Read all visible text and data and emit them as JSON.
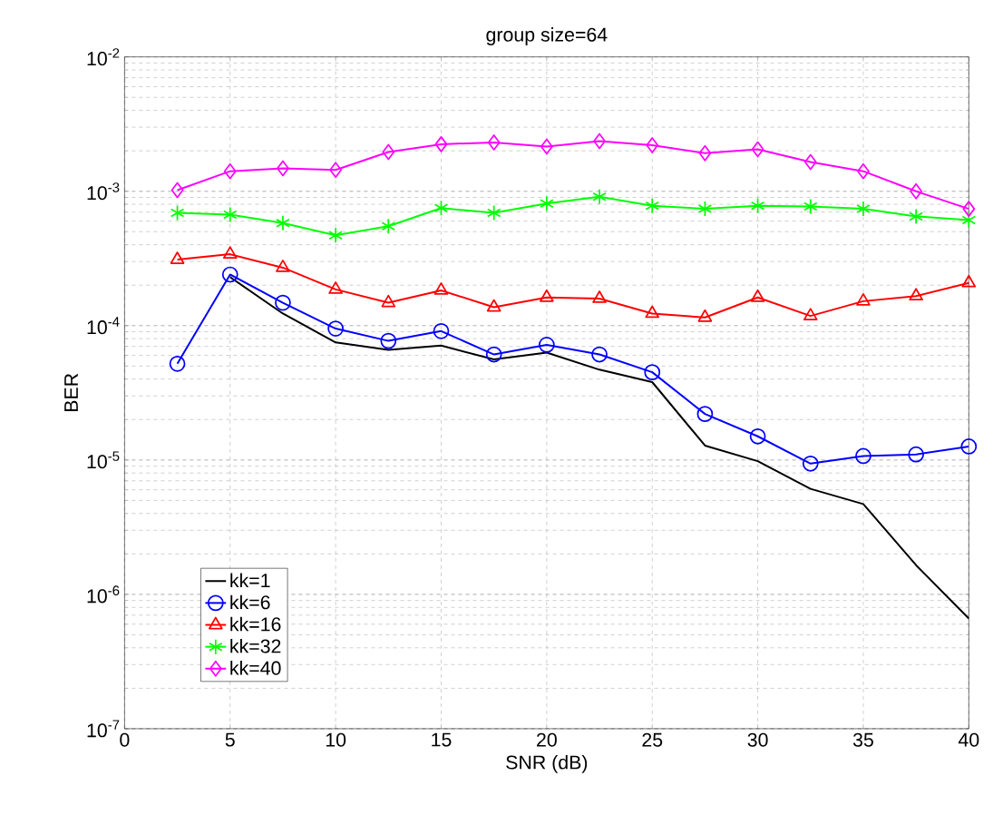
{
  "chart_data": {
    "type": "line",
    "title": "group size=64",
    "xlabel": "SNR (dB)",
    "ylabel": "BER",
    "x": [
      2.5,
      5,
      7.5,
      10,
      12.5,
      15,
      17.5,
      20,
      22.5,
      25,
      27.5,
      30,
      32.5,
      35,
      37.5,
      40
    ],
    "series": [
      {
        "name": "kk=1",
        "color": "#000000",
        "marker": "none",
        "x": [
          5,
          7.5,
          10,
          12.5,
          15,
          17.5,
          20,
          22.5,
          25,
          27.5,
          30,
          32.5,
          35,
          37.5,
          40
        ],
        "values": [
          0.00023,
          0.000123,
          7.5e-05,
          6.6e-05,
          7.1e-05,
          5.6e-05,
          6.3e-05,
          4.7e-05,
          3.8e-05,
          1.28e-05,
          9.8e-06,
          6.1e-06,
          4.7e-06,
          1.65e-06,
          6.6e-07
        ]
      },
      {
        "name": "kk=6",
        "color": "#0000ff",
        "marker": "circle",
        "values": [
          5.2e-05,
          0.00024,
          0.000148,
          9.5e-05,
          7.7e-05,
          9.1e-05,
          6.1e-05,
          7.2e-05,
          6.1e-05,
          4.5e-05,
          2.2e-05,
          1.5e-05,
          9.4e-06,
          1.07e-05,
          1.1e-05,
          1.26e-05
        ]
      },
      {
        "name": "kk=16",
        "color": "#ff0000",
        "marker": "triangle",
        "values": [
          0.00031,
          0.00034,
          0.00027,
          0.000186,
          0.000148,
          0.000183,
          0.000137,
          0.000162,
          0.000159,
          0.000123,
          0.000115,
          0.000162,
          0.000118,
          0.000152,
          0.000166,
          0.000208
        ]
      },
      {
        "name": "kk=32",
        "color": "#00ff00",
        "marker": "cross",
        "values": [
          0.00069,
          0.00067,
          0.00058,
          0.00047,
          0.00055,
          0.00075,
          0.00069,
          0.00081,
          0.00091,
          0.00078,
          0.00074,
          0.00078,
          0.00077,
          0.00074,
          0.00065,
          0.00061
        ]
      },
      {
        "name": "kk=40",
        "color": "#ff00ff",
        "marker": "diamond",
        "values": [
          0.00102,
          0.00141,
          0.00148,
          0.00144,
          0.00196,
          0.00224,
          0.00231,
          0.00215,
          0.00236,
          0.0022,
          0.00192,
          0.00205,
          0.00165,
          0.00141,
          0.001,
          0.00074
        ]
      }
    ],
    "xlim": [
      0,
      40
    ],
    "xticks": [
      0,
      5,
      10,
      15,
      20,
      25,
      30,
      35,
      40
    ],
    "ylim": [
      1e-07,
      0.01
    ],
    "yticks": [
      {
        "value": 1e-07,
        "label": "10$^{-7}$"
      },
      {
        "value": 1e-06,
        "label": "10$^{-6}$"
      },
      {
        "value": 1e-05,
        "label": "10$^{-5}$"
      },
      {
        "value": 0.0001,
        "label": "10$^{-4}$"
      },
      {
        "value": 0.001,
        "label": "10$^{-3}$"
      },
      {
        "value": 0.01,
        "label": "10$^{-2}$"
      }
    ],
    "log": true,
    "grid": true,
    "legend": "bottom left",
    "line_style": "solid"
  }
}
